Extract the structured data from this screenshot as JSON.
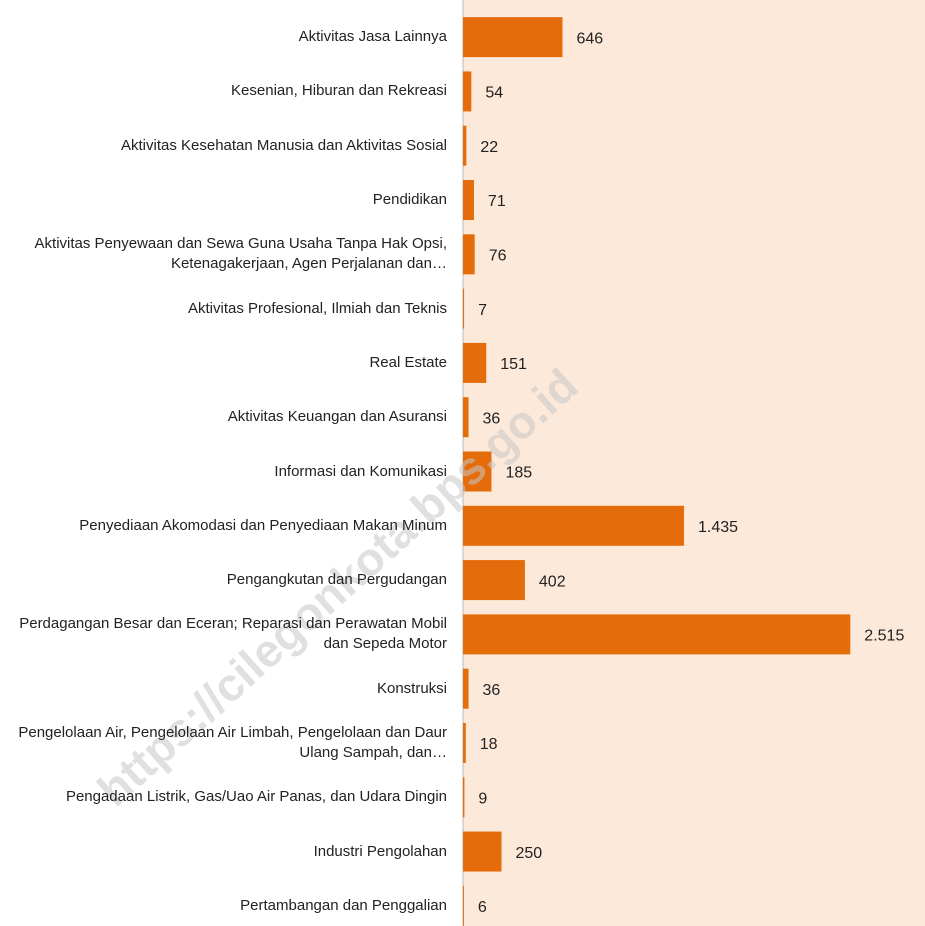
{
  "chart_data": {
    "type": "bar",
    "orientation": "horizontal",
    "categories": [
      "Aktivitas Jasa Lainnya",
      "Kesenian, Hiburan dan Rekreasi",
      "Aktivitas Kesehatan Manusia dan Aktivitas Sosial",
      "Pendidikan",
      "Aktivitas Penyewaan dan Sewa Guna Usaha Tanpa Hak Opsi, Ketenagakerjaan, Agen Perjalanan dan…",
      "Aktivitas Profesional, Ilmiah dan Teknis",
      "Real Estate",
      "Aktivitas Keuangan dan Asuransi",
      "Informasi dan Komunikasi",
      "Penyediaan Akomodasi dan Penyediaan Makan Minum",
      "Pengangkutan dan Pergudangan",
      "Perdagangan Besar dan Eceran; Reparasi dan Perawatan Mobil dan Sepeda Motor",
      "Konstruksi",
      "Pengelolaan Air, Pengelolaan Air Limbah, Pengelolaan dan Daur Ulang Sampah, dan…",
      "Pengadaan Listrik, Gas/Uao Air Panas, dan Udara Dingin",
      "Industri Pengolahan",
      "Pertambangan dan Penggalian"
    ],
    "values": [
      646,
      54,
      22,
      71,
      76,
      7,
      151,
      36,
      185,
      1435,
      402,
      2515,
      36,
      18,
      9,
      250,
      6
    ],
    "value_labels": [
      "646",
      "54",
      "22",
      "71",
      "76",
      "7",
      "151",
      "36",
      "185",
      "1.435",
      "402",
      "2.515",
      "36",
      "18",
      "9",
      "250",
      "6"
    ],
    "color": "#e46c0a",
    "background": "#fde9d9",
    "xlim": [
      0,
      3000
    ],
    "watermark": "https://cilegonkota.bps.go.id"
  }
}
